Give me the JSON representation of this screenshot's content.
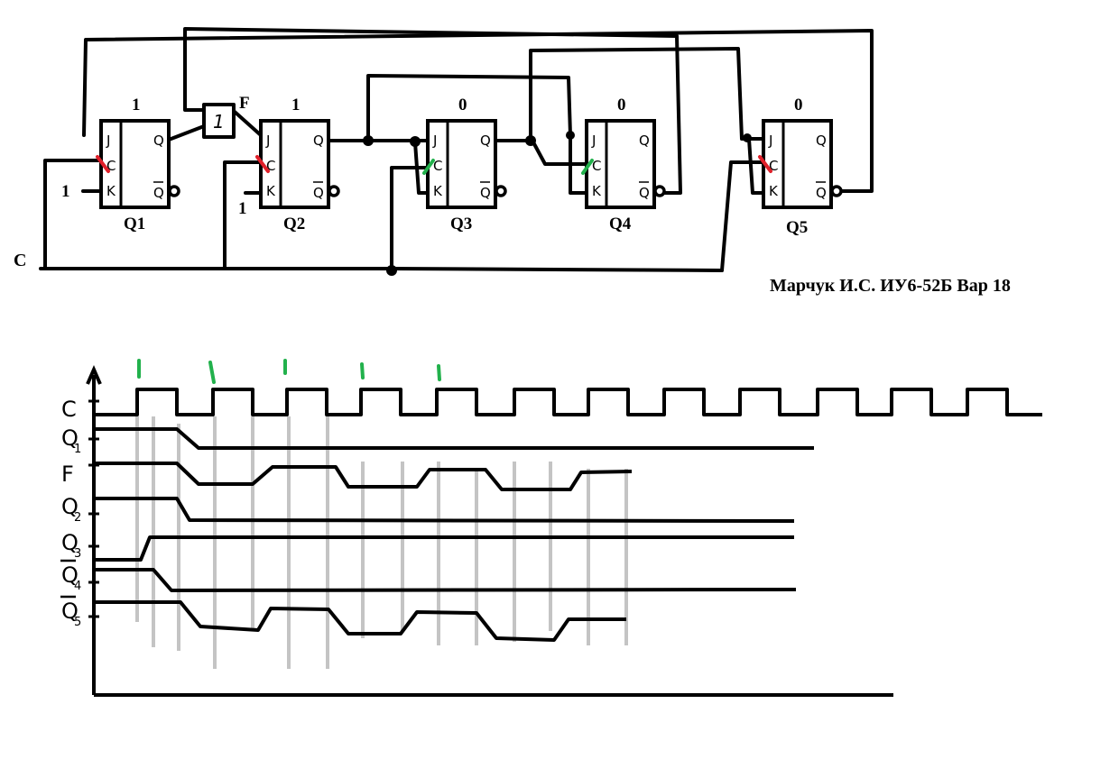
{
  "schematic": {
    "clock_label": "C",
    "one_label": "1",
    "gate_label": "1",
    "gate_output_label": "F",
    "pins": {
      "j": "J",
      "c": "C",
      "k": "K",
      "q": "Q",
      "qbar": "Q"
    },
    "flipflops": [
      {
        "name": "Q1",
        "state": "1",
        "clock_edge_mark": "red"
      },
      {
        "name": "Q2",
        "state": "1",
        "clock_edge_mark": "red"
      },
      {
        "name": "Q3",
        "state": "0",
        "clock_edge_mark": "green"
      },
      {
        "name": "Q4",
        "state": "0",
        "clock_edge_mark": "green"
      },
      {
        "name": "Q5",
        "state": "0",
        "clock_edge_mark": "red"
      }
    ],
    "author": "Марчук И.С. ИУ6-52Б Вар 18"
  },
  "timing": {
    "signals": [
      {
        "label": "C",
        "subscript": "",
        "overbar": false
      },
      {
        "label": "Q",
        "subscript": "1",
        "overbar": false
      },
      {
        "label": "F",
        "subscript": "",
        "overbar": false
      },
      {
        "label": "Q",
        "subscript": "2",
        "overbar": false
      },
      {
        "label": "Q",
        "subscript": "3",
        "overbar": false
      },
      {
        "label": "Q",
        "subscript": "4",
        "overbar": true
      },
      {
        "label": "Q",
        "subscript": "5",
        "overbar": true
      }
    ],
    "clock_pulse_count": 12,
    "colors": {
      "wire": "#000000",
      "guide": "#c4c4c4",
      "edge_red": "#e0202a",
      "edge_green": "#22b14c"
    }
  }
}
